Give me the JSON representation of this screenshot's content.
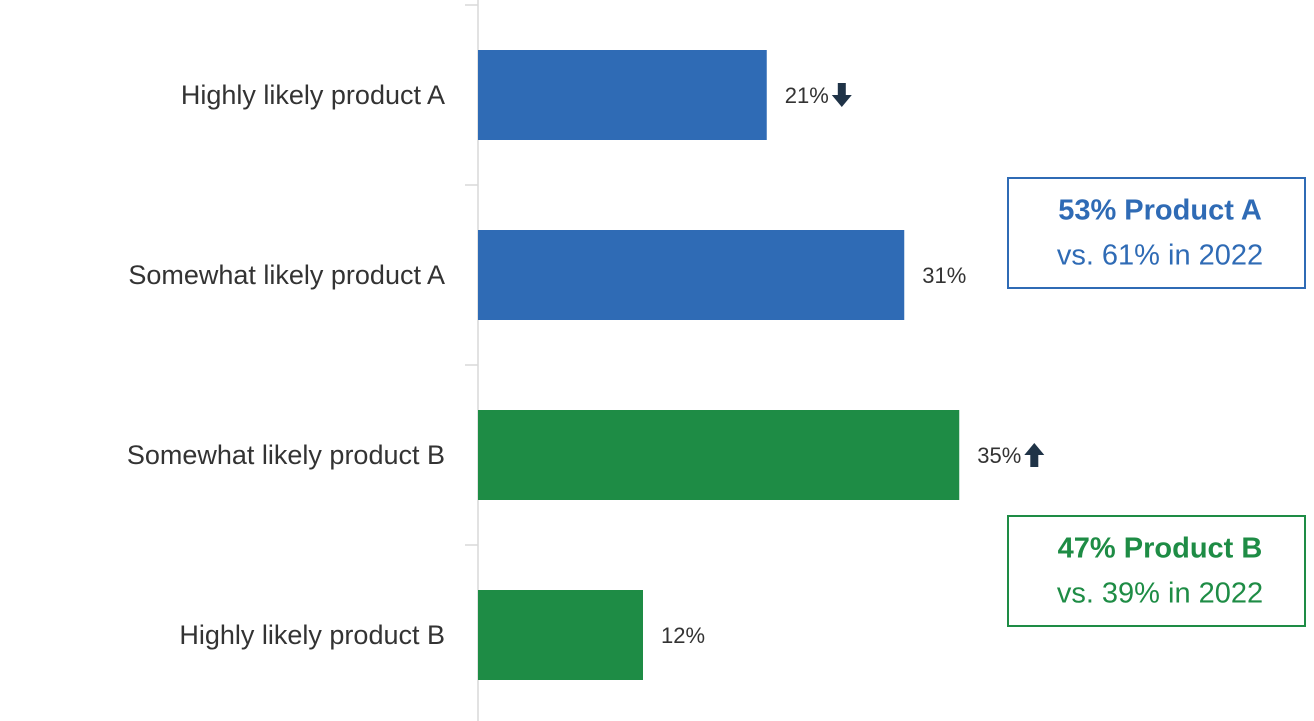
{
  "chart_data": {
    "type": "bar",
    "orientation": "horizontal",
    "categories": [
      "Highly likely product A",
      "Somewhat likely product A",
      "Somewhat likely product B",
      "Highly likely product B"
    ],
    "values": [
      21,
      31,
      35,
      12
    ],
    "value_labels": [
      "21%",
      "31%",
      "35%",
      "12%"
    ],
    "colors": [
      "#2f6bb5",
      "#2f6bb5",
      "#1e8c45",
      "#1e8c45"
    ],
    "arrows": [
      "down",
      null,
      "up",
      null
    ],
    "annotations": [
      {
        "lines": [
          "53% Product A",
          "vs. 61% in 2022"
        ],
        "color": "#2f6bb5"
      },
      {
        "lines": [
          "47% Product B",
          "vs. 39% in 2022"
        ],
        "color": "#1e8c45"
      }
    ]
  }
}
